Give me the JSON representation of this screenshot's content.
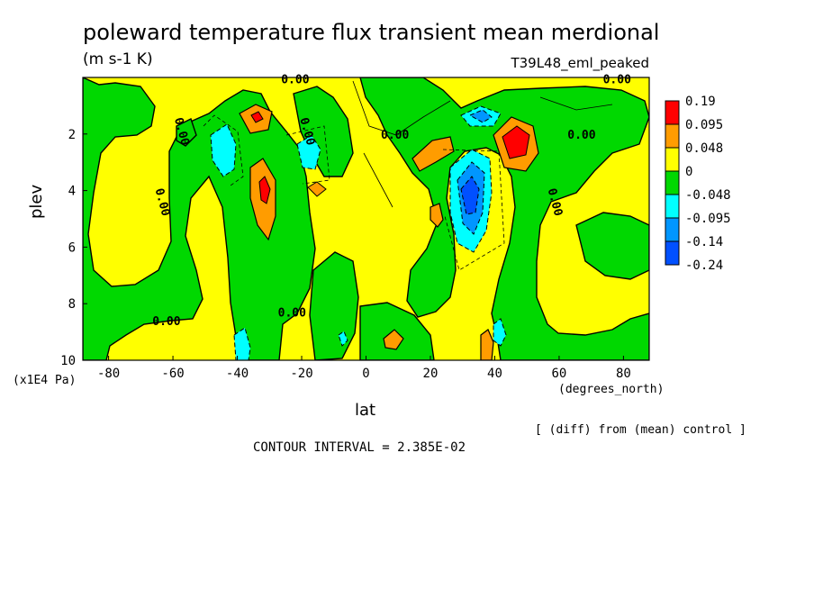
{
  "header": {
    "title": "poleward temperature flux transient mean merdional",
    "units": "(m s-1 K)",
    "experiment": "T39L48_eml_peaked"
  },
  "footer": {
    "xlabel": "lat",
    "xunits": "(degrees_north)",
    "ylabel": "plev",
    "yunits": "(x1E4 Pa)",
    "note": "[ (diff) from (mean) control ]",
    "interval": "CONTOUR INTERVAL = 2.385E-02"
  },
  "chart_data": {
    "type": "heatmap",
    "title": "poleward temperature flux transient mean merdional",
    "xlabel": "lat",
    "ylabel": "plev",
    "xlim": [
      -88,
      88
    ],
    "ylim": [
      10,
      0
    ],
    "xticks": [
      -80,
      -60,
      -40,
      -20,
      0,
      20,
      40,
      60,
      80
    ],
    "yticks": [
      2,
      4,
      6,
      8,
      10
    ],
    "contour_interval": 0.02385,
    "contour_labels": [
      "0.00",
      "0.00",
      "0.00",
      "0.00",
      "0.00",
      "0.00",
      "0.00",
      "0.00",
      "0.00",
      "0.00"
    ],
    "colorbar": {
      "labels": [
        "0.19",
        "0.095",
        "0.048",
        "0",
        "-0.048",
        "-0.095",
        "-0.14",
        "-0.24"
      ],
      "colors": [
        "#ff0000",
        "#ff9c00",
        "#ffff00",
        "#00d800",
        "#00ffff",
        "#0096ff",
        "#0050ff"
      ]
    },
    "features": [
      {
        "lat": 45,
        "plev": 2.3,
        "value": 0.19
      },
      {
        "lat": -32,
        "plev": 1.4,
        "value": 0.095
      },
      {
        "lat": -32,
        "plev": 4.0,
        "value": 0.095
      },
      {
        "lat": 23,
        "plev": 2.6,
        "value": 0.095
      },
      {
        "lat": 32,
        "plev": 4.1,
        "value": -0.14
      },
      {
        "lat": 36,
        "plev": 1.3,
        "value": -0.14
      },
      {
        "lat": -43,
        "plev": 2.6,
        "value": -0.095
      },
      {
        "lat": -18,
        "plev": 2.6,
        "value": -0.095
      },
      {
        "lat": 9,
        "plev": 9.2,
        "value": 0.095
      },
      {
        "lat": 38,
        "plev": 9.5,
        "value": 0.095
      }
    ]
  }
}
